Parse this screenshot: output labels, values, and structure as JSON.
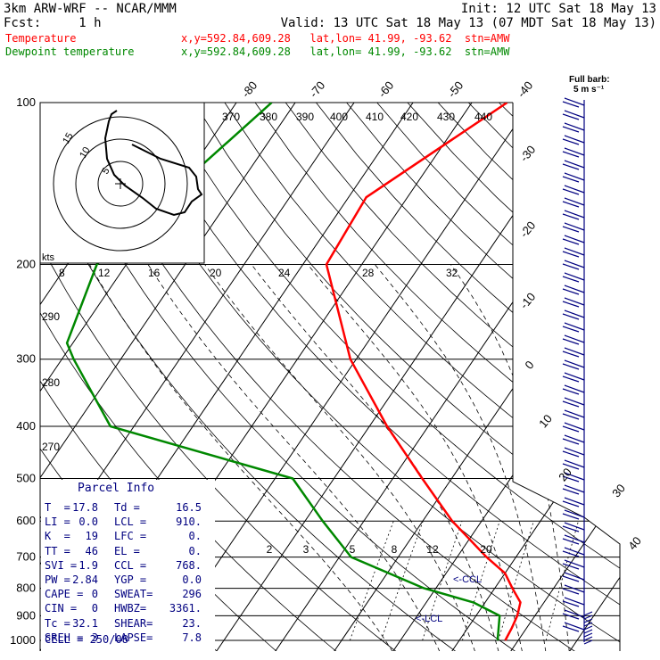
{
  "header": {
    "title": "3km ARW-WRF -- NCAR/MMM",
    "init": "Init: 12 UTC Sat 18 May 13",
    "fcst": "Fcst:     1 h",
    "valid": "Valid: 13 UTC Sat 18 May 13 (07 MDT Sat 18 May 13)",
    "temp_label": "Temperature",
    "temp_info": "x,y=592.84,609.28   lat,lon= 41.99, -93.62  stn=AMW",
    "dew_label": "Dewpoint temperature",
    "dew_info": "x,y=592.84,609.28   lat,lon= 41.99, -93.62  stn=AMW",
    "barb_note_1": "Full barb:",
    "barb_note_2": "5 m s⁻¹"
  },
  "colors": {
    "temperature": "#ff0000",
    "dewpoint": "#008800",
    "parcel": "#000080",
    "wind": "#000080"
  },
  "chart_data": {
    "type": "skew-t",
    "pressure_levels": [
      100,
      200,
      300,
      400,
      500,
      600,
      700,
      800,
      900,
      1000
    ],
    "pressure_labels": [
      "100",
      "200",
      "300",
      "400",
      "500",
      "600",
      "700",
      "800",
      "900",
      "1000"
    ],
    "isotherm_labels_top": [
      "-80",
      "-70",
      "-60",
      "-50",
      "-40"
    ],
    "isotherm_labels_right": [
      "-30",
      "-20",
      "-10",
      "0",
      "10",
      "20",
      "30",
      "40"
    ],
    "theta_labels_top": [
      "370",
      "380",
      "390",
      "400",
      "410",
      "420",
      "430",
      "440"
    ],
    "theta_labels_left": [
      "290",
      "280",
      "270"
    ],
    "mixing_ratio_labels": [
      "2",
      "3",
      "5",
      "8",
      "12",
      "20"
    ],
    "temperature_profile": [
      {
        "p": 100,
        "t": -44
      },
      {
        "p": 150,
        "t": -57
      },
      {
        "p": 200,
        "t": -56
      },
      {
        "p": 300,
        "t": -41
      },
      {
        "p": 400,
        "t": -27
      },
      {
        "p": 500,
        "t": -15
      },
      {
        "p": 600,
        "t": -5
      },
      {
        "p": 700,
        "t": 5
      },
      {
        "p": 750,
        "t": 10
      },
      {
        "p": 800,
        "t": 13
      },
      {
        "p": 850,
        "t": 16
      },
      {
        "p": 900,
        "t": 17
      },
      {
        "p": 950,
        "t": 17.5
      },
      {
        "p": 1000,
        "t": 17.8
      }
    ],
    "dewpoint_profile": [
      {
        "p": 100,
        "t": -84
      },
      {
        "p": 150,
        "t": -91
      },
      {
        "p": 200,
        "t": -95
      },
      {
        "p": 280,
        "t": -91
      },
      {
        "p": 300,
        "t": -88
      },
      {
        "p": 400,
        "t": -74
      },
      {
        "p": 500,
        "t": -37
      },
      {
        "p": 600,
        "t": -27
      },
      {
        "p": 700,
        "t": -18
      },
      {
        "p": 800,
        "t": -2
      },
      {
        "p": 850,
        "t": 8
      },
      {
        "p": 900,
        "t": 14
      },
      {
        "p": 1000,
        "t": 16.5
      }
    ],
    "hodograph": {
      "units": "kts",
      "ring_labels": [
        "5",
        "10",
        "15"
      ],
      "speed_labels": [
        "8",
        "12",
        "16",
        "20",
        "24",
        "28",
        "32"
      ]
    },
    "lcl_markers": [
      "<-CCL",
      "<-LCL"
    ]
  },
  "parcel_info": {
    "title": "Parcel Info",
    "rows": [
      [
        "T  =",
        "17.8",
        "Td =",
        "16.5"
      ],
      [
        "LI =",
        "0.0",
        "LCL =",
        "910."
      ],
      [
        "K  =",
        "19",
        "LFC =",
        "0."
      ],
      [
        "TT =",
        "46",
        "EL =",
        "0."
      ],
      [
        "SVI =",
        "1.9",
        "CCL =",
        "768."
      ],
      [
        "PW =",
        "2.84",
        "YGP =",
        "0.0"
      ],
      [
        "CAPE =",
        "0",
        "SWEAT=",
        "296"
      ],
      [
        "CIN =",
        "0",
        "HWBZ=",
        "3361."
      ],
      [
        "Tc =",
        "32.1",
        "SHEAR=",
        "23."
      ],
      [
        "SREH =",
        "3",
        "LAPSE=",
        "7.8"
      ]
    ],
    "cell": "CELL = 250/08"
  }
}
